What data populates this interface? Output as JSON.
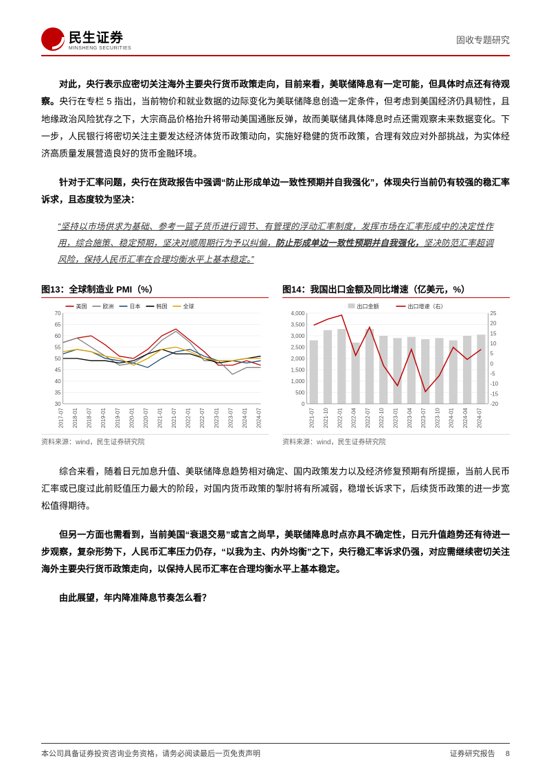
{
  "header": {
    "company_cn": "民生证券",
    "company_en": "MINSHENG SECURITIES",
    "doc_type": "固收专题研究"
  },
  "colors": {
    "brand_red": "#c00000",
    "text": "#000000",
    "muted": "#666666",
    "grid": "#d9d9d9",
    "bar_gray": "#cfcfcf"
  },
  "paragraphs": {
    "p1_lead": "对此，央行表示应密切关注海外主要央行货币政策走向，目前来看，美联储降息有一定可能，但具体时点还有待观察。",
    "p1_rest": "央行在专栏 5 指出，当前物价和就业数据的边际变化为美联储降息创造一定条件，但考虑到美国经济仍具韧性，且地缘政治风险犹存之下，大宗商品价格抬升将带动美国通胀反弹，故而美联储具体降息时点还需观察未来数据变化。下一步，人民银行将密切关注主要发达经济体货币政策动向，实施好稳健的货币政策，合理有效应对外部挑战，为实体经济高质量发展营造良好的货币金融环境。",
    "p2": "针对于汇率问题，央行在货政报告中强调“防止形成单边一致性预期并自我强化”，体现央行当前仍有较强的稳汇率诉求，且态度较为坚决：",
    "quote_a": "“坚持以市场供求为基础、参考一篮子货币进行调节、有管理的浮动汇率制度，发挥市场在汇率形成中的决定性作用，综合施策、稳定预期，坚决对顺周期行为予以纠偏，",
    "quote_bold": "防止形成单边一致性预期并自我强化，",
    "quote_b": "坚决防范汇率超调风险，保持人民币汇率在合理均衡水平上基本稳定。”",
    "p3": "综合来看，随着日元加息升值、美联储降息趋势相对确定、国内政策发力以及经济修复预期有所提振，当前人民币汇率或已度过此前贬值压力最大的阶段，对国内货币政策的掣肘将有所减弱，稳增长诉求下，后续货币政策的进一步宽松值得期待。",
    "p4": "但另一方面也需看到，当前美国“衰退交易”或言之尚早，美联储降息时点亦具不确定性，日元升值趋势还有待进一步观察，复杂形势下，人民币汇率压力仍存，“以我为主、内外均衡”之下，央行稳汇率诉求仍强，对应需继续密切关注海外主要央行货币政策走向，以保持人民币汇率在合理均衡水平上基本稳定。",
    "p5": "由此展望，年内降准降息节奏怎么看？"
  },
  "chart13": {
    "title": "图13：全球制造业 PMI（%）",
    "type": "line",
    "x_labels": [
      "2017-07",
      "2018-01",
      "2018-07",
      "2019-01",
      "2019-07",
      "2020-01",
      "2020-07",
      "2021-01",
      "2021-07",
      "2022-01",
      "2022-07",
      "2023-01",
      "2023-07",
      "2024-01",
      "2024-07"
    ],
    "y_ticks": [
      30,
      35,
      40,
      45,
      50,
      55,
      60,
      65,
      70
    ],
    "ylim": [
      30,
      70
    ],
    "legend": [
      {
        "label": "美国",
        "color": "#c00000"
      },
      {
        "label": "欧洲",
        "color": "#7f7f7f"
      },
      {
        "label": "日本",
        "color": "#1f4e79"
      },
      {
        "label": "韩国",
        "color": "#000000"
      },
      {
        "label": "全球",
        "color": "#d9a300"
      }
    ],
    "series": {
      "us": [
        57,
        59,
        60,
        56,
        51,
        50,
        54,
        60,
        63,
        58,
        53,
        47,
        47,
        49,
        47
      ],
      "eu": [
        57,
        59,
        55,
        51,
        47,
        48,
        52,
        58,
        62,
        57,
        49,
        49,
        43,
        46,
        46
      ],
      "jp": [
        52,
        54,
        53,
        50,
        49,
        48,
        46,
        50,
        53,
        54,
        51,
        49,
        49,
        48,
        49
      ],
      "kr": [
        50,
        50,
        49,
        49,
        48,
        49,
        52,
        54,
        52,
        52,
        50,
        48,
        49,
        50,
        51
      ],
      "world": [
        53,
        54,
        53,
        51,
        50,
        47,
        50,
        54,
        55,
        53,
        50,
        49,
        49,
        50,
        50
      ]
    },
    "background_color": "#ffffff",
    "grid_color": "#e6e6e6",
    "label_fontsize": 8,
    "source": "资料来源：wind，民生证券研究院"
  },
  "chart14": {
    "title": "图14：我国出口金额及同比增速（亿美元，%）",
    "type": "bar+line",
    "x_labels": [
      "2021-07",
      "2021-10",
      "2022-01",
      "2022-04",
      "2022-07",
      "2022-10",
      "2023-01",
      "2023-04",
      "2023-07",
      "2023-10",
      "2024-01",
      "2024-04",
      "2024-07"
    ],
    "y_left_ticks": [
      0,
      500,
      1000,
      1500,
      2000,
      2500,
      3000,
      3500,
      4000
    ],
    "y_left_lim": [
      0,
      4000
    ],
    "y_right_ticks": [
      -20,
      -15,
      -10,
      -5,
      0,
      5,
      10,
      15,
      20,
      25
    ],
    "y_right_lim": [
      -20,
      25
    ],
    "legend": [
      {
        "label": "出口金额",
        "color": "#cfcfcf",
        "kind": "bar"
      },
      {
        "label": "出口增速（右）",
        "color": "#c00000",
        "kind": "line"
      }
    ],
    "bars": [
      2800,
      3250,
      3300,
      2700,
      3300,
      3000,
      2900,
      2950,
      2850,
      2900,
      2800,
      3000,
      3050
    ],
    "growth": [
      19,
      22,
      24,
      4,
      18,
      -1,
      -11,
      7,
      -14,
      -6,
      8,
      2,
      7
    ],
    "bar_color": "#cfcfcf",
    "line_color": "#c00000",
    "background_color": "#ffffff",
    "grid_color": "#e6e6e6",
    "label_fontsize": 8,
    "source": "资料来源：wind，民生证券研究院"
  },
  "footer": {
    "left": "本公司具备证券投资咨询业务资格，请务必阅读最后一页免责声明",
    "right_label": "证券研究报告",
    "page": "8"
  }
}
